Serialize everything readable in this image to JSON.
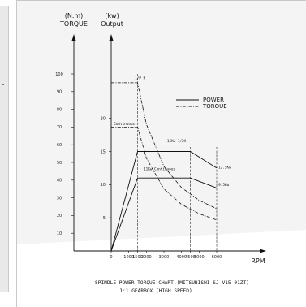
{
  "chart_data": {
    "type": "line",
    "title": "SPINDLE POWER TORQUE CHART.(MITSUBISHI SJ-V15-01ZT)",
    "subtitle": "1:1 GEARBOX (HIGH SPEED)",
    "x_axis": {
      "label": "RPM",
      "ticks": [
        0,
        1000,
        1500,
        2000,
        3000,
        4000,
        4500,
        5000,
        6000
      ],
      "tick_labels": [
        "0",
        "1000",
        "1500",
        "2000",
        "3000",
        "4000",
        "4500",
        "5000",
        "6000"
      ],
      "range": [
        0,
        6000
      ]
    },
    "y_axis_left": {
      "unit": "(N.m)",
      "label": "TORQUE",
      "ticks": [
        10,
        20,
        30,
        40,
        50,
        60,
        70,
        80,
        90,
        100
      ],
      "range": [
        0,
        100
      ]
    },
    "y_axis_right": {
      "unit": "(kw)",
      "label": "Output",
      "ticks": [
        5,
        10,
        15,
        20
      ],
      "range": [
        0,
        30
      ]
    },
    "legend": [
      {
        "name": "POWER",
        "style": "solid"
      },
      {
        "name": "TORQUE",
        "style": "dash-dot"
      }
    ],
    "legend_placement": "top-right",
    "grid": false,
    "series": [
      {
        "name": "POWER",
        "kind": "power",
        "style": "solid",
        "x": [
          0,
          1500,
          4500,
          6000
        ],
        "y": [
          0,
          15,
          15,
          12.5
        ]
      },
      {
        "name": "POWER",
        "kind": "power",
        "style": "solid",
        "x": [
          0,
          1500,
          4500,
          6000
        ],
        "y": [
          0,
          11,
          11,
          9.5
        ]
      },
      {
        "name": "TORQUE",
        "kind": "torque",
        "style": "dash-dot",
        "x": [
          0,
          1500,
          1500,
          2000,
          3000,
          4000,
          5000,
          6000
        ],
        "y": [
          95,
          95,
          95,
          71.6,
          47.7,
          35.8,
          28.6,
          23.9
        ]
      },
      {
        "name": "TORQUE",
        "kind": "torque",
        "style": "dash-dot",
        "x": [
          0,
          1500,
          1500,
          2000,
          3000,
          4000,
          5000,
          6000
        ],
        "y": [
          70,
          70,
          70,
          52.5,
          35.0,
          26.3,
          21.0,
          17.5
        ]
      }
    ],
    "annotations": [
      {
        "text": "1/P H",
        "x": 1350,
        "y": 97
      },
      {
        "text": "Continuous",
        "x": 150,
        "y": 71
      },
      {
        "text": "15Kw 1/2H",
        "x": 3180,
        "y": 16.4
      },
      {
        "text": "11Kw Continuous",
        "x": 1850,
        "y": 12.2
      },
      {
        "text": "12.5Kw",
        "x": 6100,
        "y": 12.4
      },
      {
        "text": "9.5Kw",
        "x": 6100,
        "y": 9.8
      }
    ]
  }
}
